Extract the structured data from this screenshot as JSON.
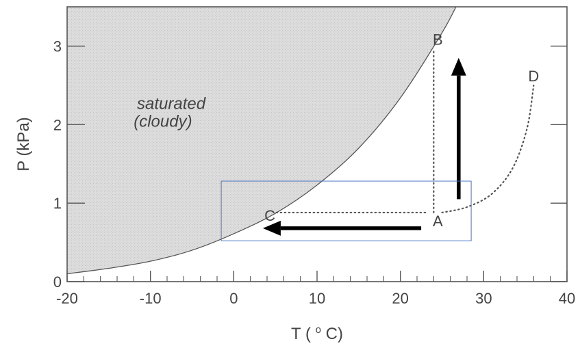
{
  "chart_data": {
    "type": "line",
    "title": "",
    "xlabel": {
      "text": "T",
      "unit_open": "(",
      "unit_sup": "o",
      "unit_rest": "C)"
    },
    "ylabel": "P  (kPa)",
    "xlim": [
      -20,
      40
    ],
    "ylim": [
      0,
      3.5
    ],
    "x_ticks": [
      -20,
      -10,
      0,
      10,
      20,
      30,
      40
    ],
    "y_ticks": [
      0,
      1,
      2,
      3
    ],
    "x_minor_step": 2,
    "y_minor_step": 0.2,
    "grid": false,
    "saturation_curve": {
      "description_label_line1": "saturated",
      "description_label_line2": "(cloudy)",
      "fill_color": "#d8d8d8",
      "points": [
        {
          "x": -20,
          "y": 0.1
        },
        {
          "x": -15,
          "y": 0.17
        },
        {
          "x": -10,
          "y": 0.26
        },
        {
          "x": -5,
          "y": 0.4
        },
        {
          "x": 0,
          "y": 0.61
        },
        {
          "x": 5,
          "y": 0.87
        },
        {
          "x": 10,
          "y": 1.23
        },
        {
          "x": 15,
          "y": 1.7
        },
        {
          "x": 20,
          "y": 2.34
        },
        {
          "x": 25,
          "y": 3.17
        },
        {
          "x": 27,
          "y": 3.57
        }
      ]
    },
    "state_points": [
      {
        "label": "A",
        "x": 24,
        "y": 0.88
      },
      {
        "label": "B",
        "x": 24,
        "y": 3.0
      },
      {
        "label": "C",
        "x": 4.5,
        "y": 0.88
      },
      {
        "label": "D",
        "x": 36,
        "y": 2.5
      }
    ],
    "dotted_paths": [
      {
        "name": "A-B",
        "points": [
          {
            "x": 24,
            "y": 0.88
          },
          {
            "x": 24,
            "y": 2.95
          }
        ]
      },
      {
        "name": "A-C",
        "points": [
          {
            "x": 23,
            "y": 0.88
          },
          {
            "x": 5,
            "y": 0.88
          }
        ]
      },
      {
        "name": "A-D",
        "points": [
          {
            "x": 25,
            "y": 0.88
          },
          {
            "x": 28,
            "y": 0.95
          },
          {
            "x": 31,
            "y": 1.12
          },
          {
            "x": 33.5,
            "y": 1.45
          },
          {
            "x": 35.2,
            "y": 1.95
          },
          {
            "x": 36,
            "y": 2.5
          }
        ]
      }
    ],
    "arrows": [
      {
        "name": "vertical",
        "from": {
          "x": 27,
          "y": 1.05
        },
        "to": {
          "x": 27,
          "y": 2.85
        }
      },
      {
        "name": "horizontal",
        "from": {
          "x": 22.5,
          "y": 0.68
        },
        "to": {
          "x": 3.5,
          "y": 0.68
        }
      }
    ],
    "highlight_box": {
      "x_range": [
        -1.5,
        28.5
      ],
      "y_range": [
        0.52,
        1.28
      ],
      "color": "#4472c4"
    },
    "colors": {
      "axis": "#555555",
      "text": "#444444",
      "curve": "#555555",
      "arrow": "#000000",
      "dotted": "#555555",
      "background": "#ffffff"
    }
  }
}
